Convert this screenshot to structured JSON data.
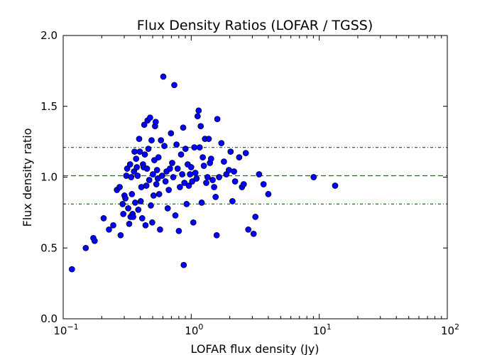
{
  "chart_data": {
    "type": "scatter",
    "title": "Flux Density Ratios (LOFAR / TGSS)",
    "xlabel": "LOFAR flux density (Jy)",
    "ylabel": "Flux density ratio",
    "x_scale": "log",
    "xlim": [
      0.1,
      100
    ],
    "ylim": [
      0.0,
      2.0
    ],
    "y_ticks": [
      0.0,
      0.5,
      1.0,
      1.5,
      2.0
    ],
    "y_tick_labels": [
      "0.0",
      "0.5",
      "1.0",
      "1.5",
      "2.0"
    ],
    "x_ticks": [
      0.1,
      1,
      10,
      100
    ],
    "x_tick_labels": [
      {
        "base": "10",
        "exp": "−1"
      },
      {
        "base": "10",
        "exp": "0"
      },
      {
        "base": "10",
        "exp": "1"
      },
      {
        "base": "10",
        "exp": "2"
      }
    ],
    "grid": false,
    "legend": "none",
    "marker_color": "#0000ff",
    "reference_lines": [
      {
        "y": 1.01,
        "style": "dashed",
        "color": "#008000"
      },
      {
        "y": 1.21,
        "style": "dashdot",
        "color": "#008000"
      },
      {
        "y": 0.81,
        "style": "dashdot",
        "color": "#008000"
      }
    ],
    "points": [
      [
        0.117,
        0.35
      ],
      [
        0.15,
        0.5
      ],
      [
        0.172,
        0.57
      ],
      [
        0.176,
        0.55
      ],
      [
        0.207,
        0.71
      ],
      [
        0.228,
        0.63
      ],
      [
        0.246,
        0.66
      ],
      [
        0.263,
        0.91
      ],
      [
        0.276,
        0.93
      ],
      [
        0.281,
        0.59
      ],
      [
        0.291,
        0.81
      ],
      [
        0.295,
        0.74
      ],
      [
        0.301,
        0.87
      ],
      [
        0.306,
        0.85
      ],
      [
        0.311,
        1.01
      ],
      [
        0.316,
        1.06
      ],
      [
        0.322,
        0.78
      ],
      [
        0.328,
        0.67
      ],
      [
        0.333,
        1.09
      ],
      [
        0.336,
        0.72
      ],
      [
        0.34,
        1.0
      ],
      [
        0.344,
        0.88
      ],
      [
        0.348,
        0.74
      ],
      [
        0.352,
        0.72
      ],
      [
        0.357,
        1.04
      ],
      [
        0.361,
        1.18
      ],
      [
        0.365,
        0.82
      ],
      [
        0.371,
        1.13
      ],
      [
        0.376,
        1.07
      ],
      [
        0.381,
        1.01
      ],
      [
        0.386,
        0.77
      ],
      [
        0.392,
        1.27
      ],
      [
        0.397,
        1.18
      ],
      [
        0.403,
        0.83
      ],
      [
        0.408,
        0.93
      ],
      [
        0.414,
        0.71
      ],
      [
        0.42,
        1.09
      ],
      [
        0.425,
        1.07
      ],
      [
        0.43,
        1.37
      ],
      [
        0.434,
        1.16
      ],
      [
        0.44,
        0.66
      ],
      [
        0.446,
        0.94
      ],
      [
        0.451,
        1.06
      ],
      [
        0.456,
        1.4
      ],
      [
        0.463,
        1.2
      ],
      [
        0.47,
        0.98
      ],
      [
        0.477,
        1.42
      ],
      [
        0.484,
        0.8
      ],
      [
        0.49,
        1.26
      ],
      [
        0.496,
        0.68
      ],
      [
        0.502,
        1.02
      ],
      [
        0.508,
        0.87
      ],
      [
        0.515,
        1.12
      ],
      [
        0.522,
        1.36
      ],
      [
        0.528,
        1.39
      ],
      [
        0.534,
        0.95
      ],
      [
        0.541,
        1.05
      ],
      [
        0.548,
        0.99
      ],
      [
        0.555,
        1.14
      ],
      [
        0.562,
        0.88
      ],
      [
        0.571,
        0.63
      ],
      [
        0.58,
        1.26
      ],
      [
        0.592,
        1.01
      ],
      [
        0.605,
        1.71
      ],
      [
        0.617,
        1.22
      ],
      [
        0.63,
        0.97
      ],
      [
        0.642,
        1.04
      ],
      [
        0.655,
        0.78
      ],
      [
        0.668,
        0.91
      ],
      [
        0.682,
        1.06
      ],
      [
        0.695,
        1.31
      ],
      [
        0.71,
        1.1
      ],
      [
        0.724,
        1.0
      ],
      [
        0.738,
        1.65
      ],
      [
        0.752,
        0.73
      ],
      [
        0.767,
        1.23
      ],
      [
        0.783,
        1.06
      ],
      [
        0.8,
        0.62
      ],
      [
        0.816,
        0.93
      ],
      [
        0.833,
        1.16
      ],
      [
        0.85,
        1.02
      ],
      [
        0.865,
        1.35
      ],
      [
        0.874,
        0.38
      ],
      [
        0.884,
        0.96
      ],
      [
        0.902,
        1.2
      ],
      [
        0.92,
        0.81
      ],
      [
        0.939,
        1.09
      ],
      [
        0.958,
        0.94
      ],
      [
        0.978,
        1.02
      ],
      [
        0.998,
        1.07
      ],
      [
        1.018,
        0.97
      ],
      [
        1.038,
        0.68
      ],
      [
        1.058,
        1.21
      ],
      [
        1.078,
        1.03
      ],
      [
        1.1,
        0.99
      ],
      [
        1.121,
        1.43
      ],
      [
        1.143,
        1.47
      ],
      [
        1.164,
        1.21
      ],
      [
        1.186,
        1.36
      ],
      [
        1.208,
        0.82
      ],
      [
        1.231,
        1.14
      ],
      [
        1.255,
        1.08
      ],
      [
        1.28,
        1.27
      ],
      [
        1.31,
        0.96
      ],
      [
        1.34,
        1.0
      ],
      [
        1.37,
        1.27
      ],
      [
        1.4,
        1.1
      ],
      [
        1.43,
        1.13
      ],
      [
        1.47,
        0.98
      ],
      [
        1.51,
        0.93
      ],
      [
        1.55,
        0.86
      ],
      [
        1.58,
        0.59
      ],
      [
        1.6,
        1.41
      ],
      [
        1.65,
        1.0
      ],
      [
        1.72,
        1.24
      ],
      [
        1.8,
        1.11
      ],
      [
        1.88,
        1.02
      ],
      [
        1.97,
        1.05
      ],
      [
        2.03,
        1.18
      ],
      [
        2.1,
        0.83
      ],
      [
        2.16,
        1.04
      ],
      [
        2.2,
        0.97
      ],
      [
        2.37,
        1.14
      ],
      [
        2.49,
        0.93
      ],
      [
        2.57,
        0.95
      ],
      [
        2.67,
        1.17
      ],
      [
        2.79,
        0.63
      ],
      [
        3.07,
        0.6
      ],
      [
        3.17,
        0.72
      ],
      [
        3.39,
        1.02
      ],
      [
        3.67,
        0.95
      ],
      [
        4.0,
        0.88
      ],
      [
        9.05,
        1.0
      ],
      [
        13.3,
        0.94
      ]
    ]
  }
}
